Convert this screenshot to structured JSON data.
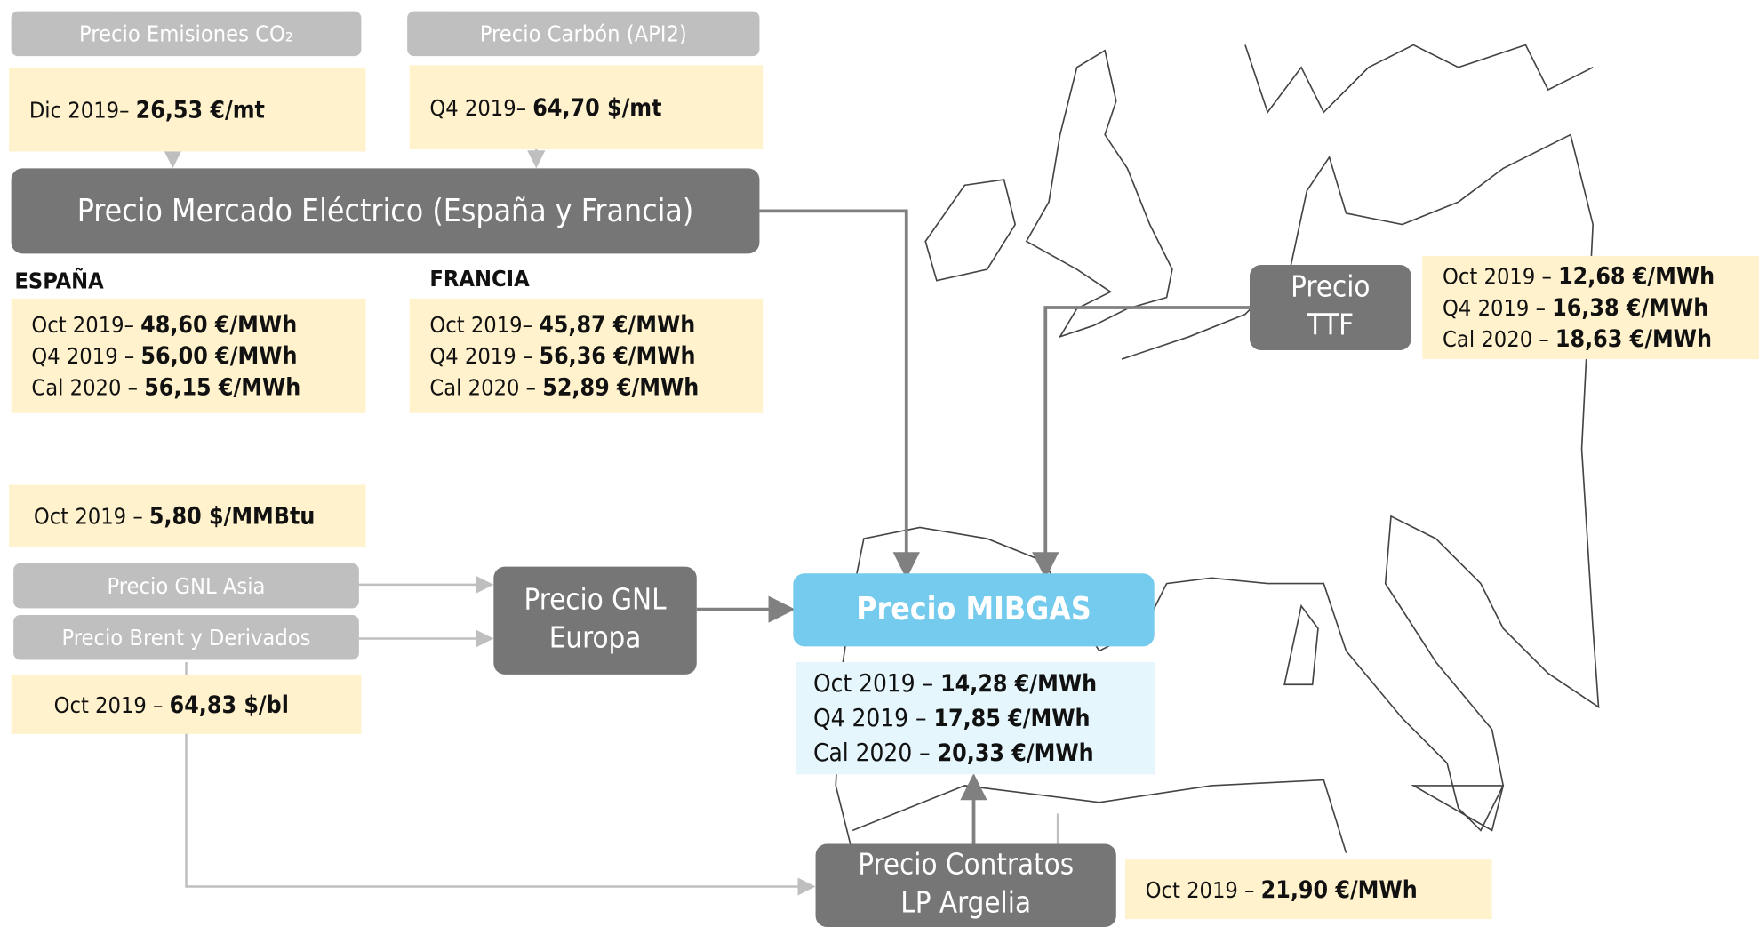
{
  "co2": {
    "label": "Precio Emisiones CO₂",
    "items": [
      {
        "period": "Dic 2019–",
        "value": "26,53 €/mt"
      }
    ]
  },
  "coal": {
    "label": "Precio Carbón (API2)",
    "items": [
      {
        "period": "Q4 2019–",
        "value": "64,70 $/mt"
      }
    ]
  },
  "electric": {
    "label": "Precio Mercado Eléctrico (España y Francia)"
  },
  "spain": {
    "title": "ESPAÑA",
    "items": [
      {
        "period": "Oct 2019–",
        "value": "48,60 €/MWh"
      },
      {
        "period": "Q4 2019 –",
        "value": "56,00 €/MWh"
      },
      {
        "period": "Cal 2020 –",
        "value": "56,15 €/MWh"
      }
    ]
  },
  "france": {
    "title": "FRANCIA",
    "items": [
      {
        "period": "Oct 2019–",
        "value": "45,87 €/MWh"
      },
      {
        "period": "Q4 2019 –",
        "value": "56,36 €/MWh"
      },
      {
        "period": "Cal 2020 –",
        "value": "52,89 €/MWh"
      }
    ]
  },
  "gnl_asia": {
    "label": "Precio GNL Asia",
    "items": [
      {
        "period": "Oct 2019 –",
        "value": "5,80 $/MMBtu"
      }
    ]
  },
  "brent": {
    "label": "Precio Brent y Derivados",
    "items": [
      {
        "period": "Oct 2019 –",
        "value": "64,83 $/bl"
      }
    ]
  },
  "gnl_europe": {
    "lines": [
      "Precio GNL",
      "Europa"
    ]
  },
  "mibgas": {
    "label": "Precio MIBGAS",
    "items": [
      {
        "period": "Oct 2019 –",
        "value": "14,28 €/MWh"
      },
      {
        "period": "Q4 2019 –",
        "value": "17,85 €/MWh"
      },
      {
        "period": "Cal 2020 –",
        "value": "20,33 €/MWh"
      }
    ]
  },
  "ttf": {
    "lines": [
      "Precio",
      "TTF"
    ],
    "items": [
      {
        "period": "Oct 2019 –",
        "value": "12,68 €/MWh"
      },
      {
        "period": "Q4 2019 –",
        "value": "16,38 €/MWh"
      },
      {
        "period": "Cal 2020 –",
        "value": "18,63 €/MWh"
      }
    ]
  },
  "argelia": {
    "lines": [
      "Precio Contratos",
      "LP Argelia"
    ],
    "items": [
      {
        "period": "Oct 2019 –",
        "value": "21,90 €/MWh"
      }
    ]
  }
}
